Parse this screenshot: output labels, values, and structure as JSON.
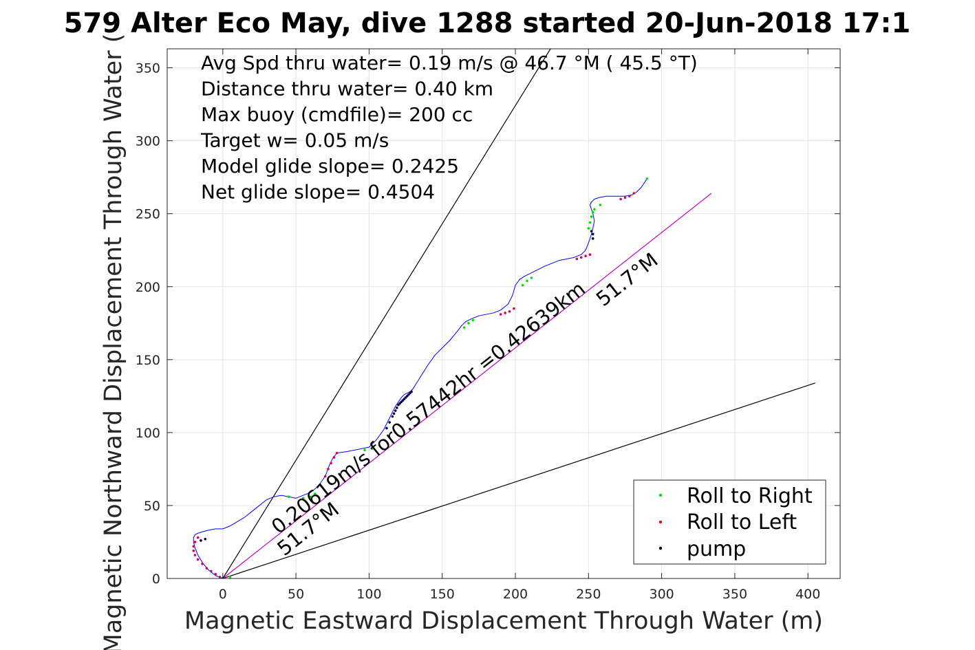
{
  "chart_data": {
    "type": "line",
    "title": "579 Alter Eco May, dive 1288 started 20-Jun-2018 17:1",
    "xlabel": "Magnetic Eastward Displacement Through Water (m)",
    "ylabel": "Magnetic Northward Displacement Through Water (",
    "xlim": [
      -38,
      422
    ],
    "ylim": [
      0,
      363
    ],
    "xticks": [
      0,
      50,
      100,
      150,
      200,
      250,
      300,
      350,
      400
    ],
    "yticks": [
      0,
      50,
      100,
      150,
      200,
      250,
      300,
      350
    ],
    "grid": true,
    "info_lines": [
      "Avg Spd thru water=  0.19 m/s @  46.7 °M ( 45.5 °T)",
      "Distance thru water=  0.40 km",
      "Max buoy (cmdfile)= 200 cc",
      "Target w= 0.05 m/s",
      "Model glide slope= 0.2425",
      "Net glide slope= 0.4504"
    ],
    "annotations": [
      {
        "text": "0.20619m/s for0.57442hr =0.42639km",
        "x": 38,
        "y": 30,
        "angle_deg": 38.3
      },
      {
        "text": "51.7°M",
        "x": 42,
        "y": 15,
        "angle_deg": 38.3
      },
      {
        "text": "51.7°M",
        "x": 260,
        "y": 186,
        "angle_deg": 38.3
      }
    ],
    "reference_lines": [
      {
        "name": "upper-bound",
        "color": "#000000",
        "x": [
          0,
          224
        ],
        "y": [
          0,
          363
        ]
      },
      {
        "name": "lower-bound",
        "color": "#000000",
        "x": [
          0,
          405
        ],
        "y": [
          0,
          134
        ]
      },
      {
        "name": "heading-51.7M",
        "color": "#c000c0",
        "x": [
          0,
          334
        ],
        "y": [
          0,
          264
        ]
      }
    ],
    "track": {
      "color": "#0000ff",
      "x": [
        0,
        -5,
        -10,
        -14,
        -17,
        -19,
        -20,
        -20,
        -19,
        -17,
        -14,
        -10,
        -5,
        0,
        5,
        10,
        15,
        20,
        25,
        30,
        35,
        40,
        45,
        50,
        55,
        60,
        65,
        70,
        73,
        75,
        78,
        85,
        95,
        100,
        105,
        110,
        113,
        116,
        118,
        120,
        122,
        124,
        126,
        128,
        130,
        135,
        140,
        145,
        150,
        155,
        160,
        163,
        166,
        170,
        175,
        180,
        185,
        190,
        195,
        198,
        200,
        203,
        206,
        210,
        220,
        230,
        240,
        245,
        248,
        250,
        252,
        253,
        254,
        253,
        252,
        251,
        252,
        254,
        257,
        262,
        270,
        275,
        280,
        283,
        286,
        290
      ],
      "y": [
        0,
        2,
        6,
        11,
        16,
        21,
        25,
        28,
        30,
        31,
        32,
        33,
        34,
        34,
        36,
        39,
        42,
        46,
        50,
        54,
        56,
        57,
        56,
        55,
        57,
        59,
        63,
        70,
        78,
        82,
        86,
        87,
        89,
        90,
        95,
        102,
        108,
        114,
        118,
        121,
        124,
        126,
        127,
        128,
        130,
        138,
        146,
        153,
        158,
        163,
        169,
        173,
        176,
        178,
        180,
        181,
        182,
        184,
        188,
        194,
        201,
        205,
        207,
        209,
        214,
        218,
        220,
        222,
        225,
        230,
        236,
        240,
        245,
        250,
        253,
        256,
        258,
        260,
        261,
        262,
        262,
        262,
        263,
        265,
        268,
        274
      ]
    },
    "series": [
      {
        "name": "Roll to Right",
        "color": "#00e000",
        "x": [
          -2,
          5,
          45,
          55,
          60,
          63,
          97,
          102,
          165,
          168,
          171,
          205,
          208,
          211,
          250,
          251,
          252,
          253,
          254,
          258,
          290
        ],
        "y": [
          0,
          1,
          56,
          55,
          56,
          58,
          88,
          89,
          172,
          175,
          177,
          201,
          204,
          206,
          240,
          244,
          248,
          251,
          253,
          256,
          274
        ]
      },
      {
        "name": "Roll to Left",
        "color": "#d0006a",
        "x": [
          -17,
          -19,
          -20,
          -20,
          -19,
          -17,
          -14,
          -11,
          -8,
          -5,
          -2,
          1,
          70,
          72,
          74,
          76,
          78,
          190,
          193,
          196,
          199,
          242,
          245,
          248,
          251,
          272,
          275,
          278,
          281
        ],
        "y": [
          28,
          25,
          22,
          19,
          16,
          13,
          10,
          7,
          5,
          3,
          1,
          0,
          70,
          75,
          79,
          83,
          86,
          181,
          182,
          183,
          185,
          219,
          220,
          221,
          222,
          260,
          261,
          262,
          264
        ]
      },
      {
        "name": "pump",
        "color": "#000040",
        "x": [
          -15,
          -12,
          0,
          112,
          114,
          116,
          117,
          118,
          119,
          120,
          121,
          122,
          123,
          124,
          125,
          126,
          127,
          128,
          129,
          253,
          253,
          252
        ],
        "y": [
          26,
          27,
          0,
          103,
          107,
          111,
          113,
          115,
          117,
          119,
          120,
          121,
          122,
          123,
          124,
          125,
          126,
          127,
          128,
          233,
          236,
          238
        ]
      }
    ],
    "legend": {
      "location": "bottom-right",
      "entries": [
        "Roll to Right",
        "Roll to Left",
        "pump"
      ],
      "colors": [
        "#00e000",
        "#ff0000",
        "#000000"
      ]
    }
  }
}
